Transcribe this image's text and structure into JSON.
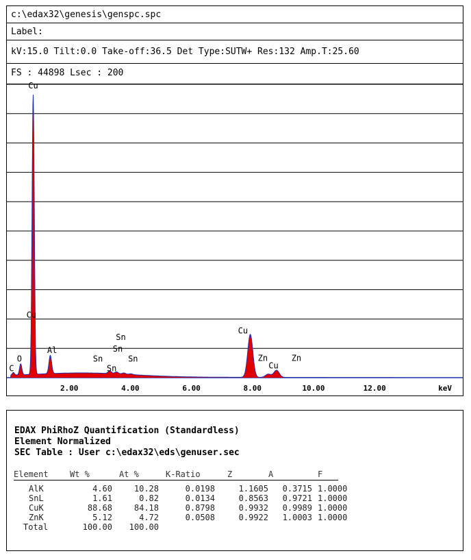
{
  "header": {
    "file_path": "c:\\edax32\\genesis\\genspc.spc",
    "label": "Label:",
    "params": "kV:15.0 Tilt:0.0 Take-off:36.5   Det Type:SUTW+ Res:132 Amp.T:25.60",
    "fs_lsec": "FS : 44898  Lsec : 200"
  },
  "chart_data": {
    "type": "area",
    "xlabel": "keV",
    "xlim": [
      0,
      15
    ],
    "x_ticks": [
      "2.00",
      "4.00",
      "6.00",
      "8.00",
      "10.00",
      "12.00"
    ],
    "x_tick_values": [
      2,
      4,
      6,
      8,
      10,
      12
    ],
    "ylim": [
      0,
      44898
    ],
    "grid": true,
    "fill_color": "#e00000",
    "outline_color": "#2233aa",
    "peaks": [
      {
        "element": "C",
        "energy": 0.28,
        "counts": 400
      },
      {
        "element": "O",
        "energy": 0.52,
        "counts": 1700
      },
      {
        "element": "Cu",
        "energy": 0.93,
        "counts": 43000
      },
      {
        "element": "Al",
        "energy": 1.49,
        "counts": 2800
      },
      {
        "element": "Sn",
        "energy": 3.44,
        "counts": 400
      },
      {
        "element": "Cu",
        "energy": 8.04,
        "counts": 6600
      },
      {
        "element": "Cu",
        "energy": 8.9,
        "counts": 1100
      }
    ],
    "annotations": [
      {
        "text": "Cu",
        "x": 0.93,
        "y": 44500
      },
      {
        "text": "Cu",
        "x": 0.87,
        "y": 9200
      },
      {
        "text": "C",
        "x": 0.22,
        "y": 1000
      },
      {
        "text": "O",
        "x": 0.48,
        "y": 2500
      },
      {
        "text": "Al",
        "x": 1.55,
        "y": 3800
      },
      {
        "text": "Sn",
        "x": 3.05,
        "y": 2500
      },
      {
        "text": "Sn",
        "x": 3.5,
        "y": 1000
      },
      {
        "text": "Sn",
        "x": 3.7,
        "y": 4000
      },
      {
        "text": "Sn",
        "x": 3.8,
        "y": 5800
      },
      {
        "text": "Sn",
        "x": 4.2,
        "y": 2500
      },
      {
        "text": "Cu",
        "x": 7.8,
        "y": 6800
      },
      {
        "text": "Zn",
        "x": 8.45,
        "y": 2600
      },
      {
        "text": "Cu",
        "x": 8.8,
        "y": 1400
      },
      {
        "text": "Zn",
        "x": 9.55,
        "y": 2600
      }
    ]
  },
  "quant": {
    "title": "EDAX PhiRhoZ Quantification (Standardless)",
    "subtitle": "Element Normalized",
    "sec_table": "SEC Table : User  c:\\edax32\\eds\\genuser.sec",
    "columns": [
      "Element",
      "Wt %",
      "At %",
      "K-Ratio",
      "Z",
      "A",
      "F"
    ],
    "rows": [
      [
        "AlK",
        "4.60",
        "10.28",
        "0.0198",
        "1.1605",
        "0.3715",
        "1.0000"
      ],
      [
        "SnL",
        "1.61",
        "0.82",
        "0.0134",
        "0.8563",
        "0.9721",
        "1.0000"
      ],
      [
        "CuK",
        "88.68",
        "84.18",
        "0.8798",
        "0.9932",
        "0.9989",
        "1.0000"
      ],
      [
        "ZnK",
        "5.12",
        "4.72",
        "0.0508",
        "0.9922",
        "1.0003",
        "1.0000"
      ]
    ],
    "total": [
      "Total",
      "100.00",
      "100.00"
    ]
  }
}
